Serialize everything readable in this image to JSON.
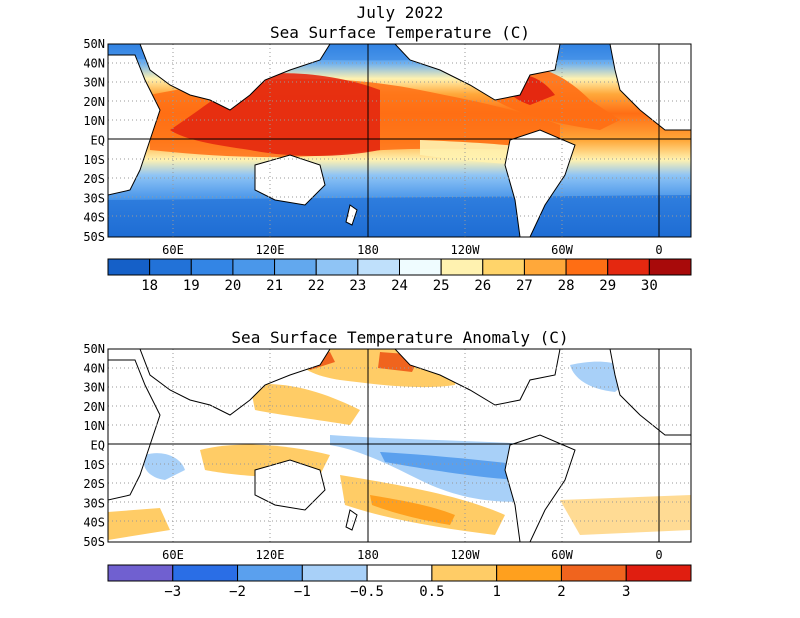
{
  "title_line1": "July 2022",
  "panels": [
    {
      "title": "Sea Surface Temperature (C)",
      "lat_labels": [
        "50N",
        "40N",
        "30N",
        "20N",
        "10N",
        "EQ",
        "10S",
        "20S",
        "30S",
        "40S",
        "50S"
      ],
      "lon_labels": [
        "60E",
        "120E",
        "180",
        "120W",
        "60W",
        "0"
      ],
      "colorbar": {
        "labels": [
          "18",
          "19",
          "20",
          "21",
          "22",
          "23",
          "24",
          "25",
          "26",
          "27",
          "28",
          "29",
          "30"
        ],
        "colors": [
          "#1560c8",
          "#2272d8",
          "#3385e5",
          "#4a97ea",
          "#62a8ee",
          "#8fc4f5",
          "#bfe0fb",
          "#effcff",
          "#fff2b0",
          "#ffd46a",
          "#ffa83a",
          "#ff6e14",
          "#e42810",
          "#a80a0a"
        ]
      }
    },
    {
      "title": "Sea Surface Temperature Anomaly (C)",
      "lat_labels": [
        "50N",
        "40N",
        "30N",
        "20N",
        "10N",
        "EQ",
        "10S",
        "20S",
        "30S",
        "40S",
        "50S"
      ],
      "lon_labels": [
        "60E",
        "120E",
        "180",
        "120W",
        "60W",
        "0"
      ],
      "colorbar": {
        "labels": [
          "−3",
          "−2",
          "−1",
          "−0.5",
          "0.5",
          "1",
          "2",
          "3"
        ],
        "colors": [
          "#7060d0",
          "#2a6ee6",
          "#5aa0ee",
          "#a8d0f8",
          "#ffffff",
          "#ffcc66",
          "#ffa01e",
          "#f0641e",
          "#e01e10"
        ]
      }
    }
  ]
}
